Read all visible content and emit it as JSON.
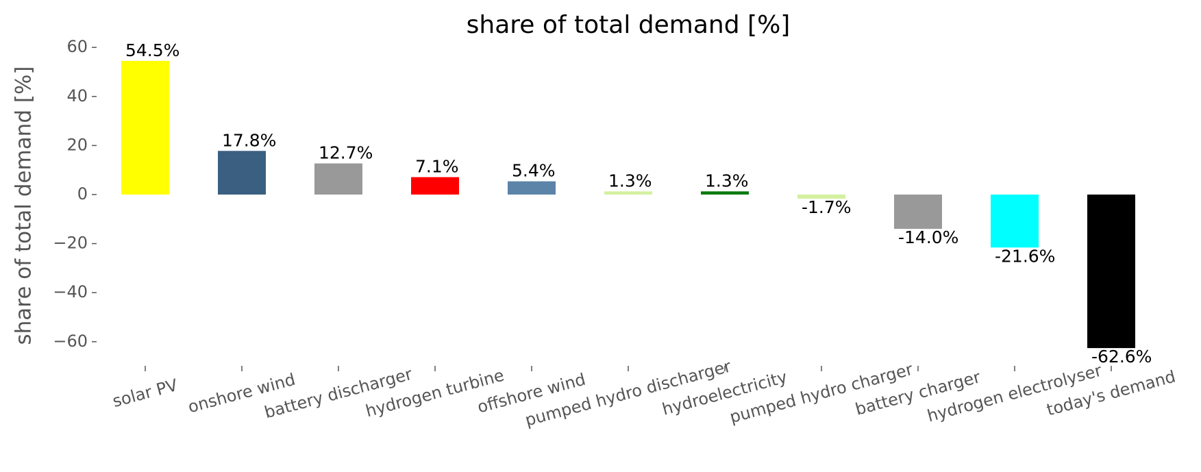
{
  "chart_data": {
    "type": "bar",
    "title": "share of total demand [%]",
    "ylabel": "share of total demand [%]",
    "categories": [
      "solar PV",
      "onshore wind",
      "battery discharger",
      "hydrogen turbine",
      "offshore wind",
      "pumped hydro discharger",
      "hydroelectricity",
      "pumped hydro charger",
      "battery charger",
      "hydrogen electrolyser",
      "today's demand"
    ],
    "values": [
      54.5,
      17.8,
      12.7,
      7.1,
      5.4,
      1.3,
      1.3,
      -1.7,
      -14.0,
      -21.6,
      -62.6
    ],
    "value_labels": [
      "54.5%",
      "17.8%",
      "12.7%",
      "7.1%",
      "5.4%",
      "1.3%",
      "1.3%",
      "-1.7%",
      "-14.0%",
      "-21.6%",
      "-62.6%"
    ],
    "colors": [
      "#ffff00",
      "#3b5f80",
      "#999999",
      "#ff0000",
      "#5b84a8",
      "#d4f0a0",
      "#0a7a10",
      "#d4f0a0",
      "#999999",
      "#00ffff",
      "#000000"
    ],
    "ylim": [
      -70,
      65
    ],
    "yticks": [
      {
        "value": -60,
        "label": "−60"
      },
      {
        "value": -40,
        "label": "−40"
      },
      {
        "value": -20,
        "label": "−20"
      },
      0,
      20,
      40,
      60
    ],
    "grid": false
  }
}
